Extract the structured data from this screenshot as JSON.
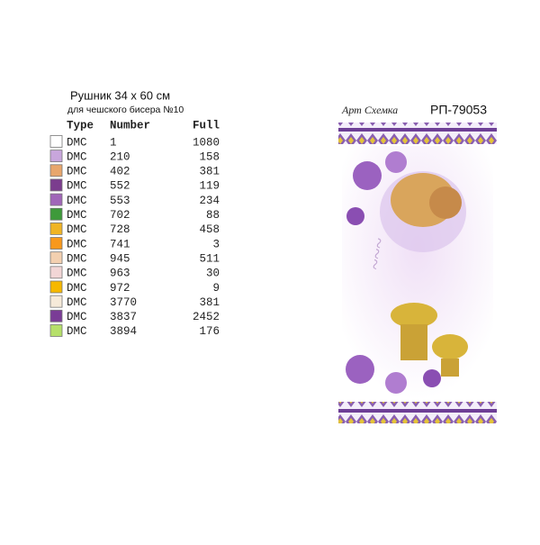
{
  "header": {
    "title": "Рушник 34 x 60 см",
    "subtitle": "для чешского бисера №10"
  },
  "table": {
    "columns": [
      "Type",
      "Number",
      "Full"
    ],
    "rows": [
      {
        "type": "DMC",
        "number": "1",
        "full": "1080",
        "color": "#ffffff"
      },
      {
        "type": "DMC",
        "number": "210",
        "full": "158",
        "color": "#c8a6dc"
      },
      {
        "type": "DMC",
        "number": "402",
        "full": "381",
        "color": "#e8a66c"
      },
      {
        "type": "DMC",
        "number": "552",
        "full": "119",
        "color": "#7b3d8e"
      },
      {
        "type": "DMC",
        "number": "553",
        "full": "234",
        "color": "#a066b8"
      },
      {
        "type": "DMC",
        "number": "702",
        "full": "88",
        "color": "#3e9a3a"
      },
      {
        "type": "DMC",
        "number": "728",
        "full": "458",
        "color": "#f0b424"
      },
      {
        "type": "DMC",
        "number": "741",
        "full": "3",
        "color": "#f8981c"
      },
      {
        "type": "DMC",
        "number": "945",
        "full": "511",
        "color": "#f3d0b0"
      },
      {
        "type": "DMC",
        "number": "963",
        "full": "30",
        "color": "#f2d6d6"
      },
      {
        "type": "DMC",
        "number": "972",
        "full": "9",
        "color": "#f6b800"
      },
      {
        "type": "DMC",
        "number": "3770",
        "full": "381",
        "color": "#f6ead9"
      },
      {
        "type": "DMC",
        "number": "3837",
        "full": "2452",
        "color": "#7a3c96"
      },
      {
        "type": "DMC",
        "number": "3894",
        "full": "176",
        "color": "#b6e06a"
      }
    ]
  },
  "design": {
    "brand": "Арт Схемка",
    "code": "РП-79053"
  }
}
